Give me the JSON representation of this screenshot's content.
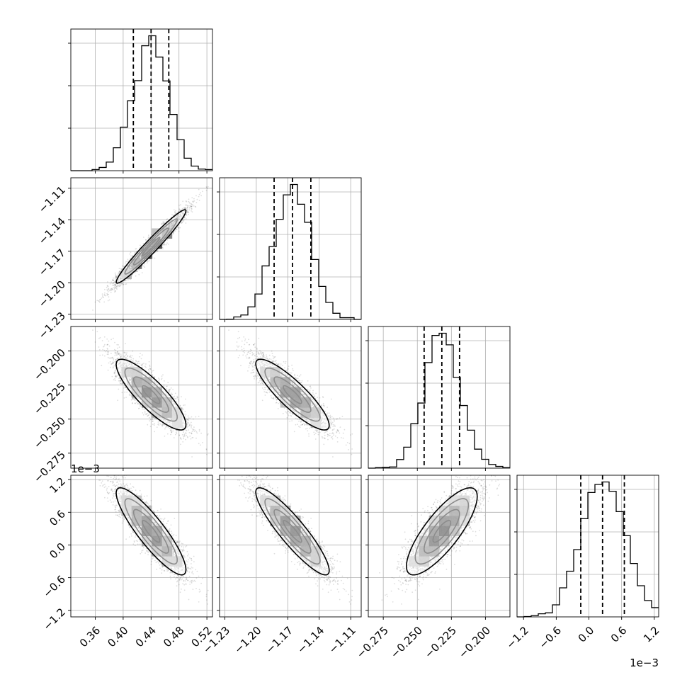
{
  "chart_data": {
    "type": "corner",
    "parameters": [
      {
        "range": [
          0.325,
          0.528
        ],
        "ticks": [
          0.36,
          0.4,
          0.44,
          0.48,
          0.52
        ],
        "tick_labels": [
          "0.36",
          "0.40",
          "0.44",
          "0.48",
          "0.52"
        ],
        "offset_label": "",
        "median": 0.44,
        "sigma": 0.025,
        "quantiles": [
          0.4146,
          0.44,
          0.4654
        ]
      },
      {
        "range": [
          -1.235,
          -1.1
        ],
        "ticks": [
          -1.23,
          -1.2,
          -1.17,
          -1.14,
          -1.11
        ],
        "tick_labels": [
          "−1.23",
          "−1.20",
          "−1.17",
          "−1.14",
          "−1.11"
        ],
        "offset_label": "",
        "median": -1.1655,
        "sigma": 0.0175,
        "quantiles": [
          -1.183,
          -1.1655,
          -1.148
        ]
      },
      {
        "range": [
          -0.286,
          -0.182
        ],
        "ticks": [
          -0.275,
          -0.25,
          -0.225,
          -0.2
        ],
        "tick_labels": [
          "−0.275",
          "−0.250",
          "−0.225",
          "−0.200"
        ],
        "offset_label": "",
        "median": -0.232,
        "sigma": 0.013,
        "quantiles": [
          -0.245,
          -0.232,
          -0.219
        ]
      },
      {
        "range": [
          -1.32,
          1.28
        ],
        "ticks": [
          -1.2,
          -0.6,
          0.0,
          0.6,
          1.2
        ],
        "tick_labels": [
          "−1.2",
          "−0.6",
          "0.0",
          "0.6",
          "1.2"
        ],
        "offset_label": "1e−3",
        "median": 0.25,
        "sigma": 0.4,
        "quantiles": [
          -0.15,
          0.25,
          0.65
        ]
      }
    ],
    "correlations": [
      [
        1.0,
        0.97,
        -0.85,
        -0.88
      ],
      [
        0.97,
        1.0,
        -0.87,
        -0.9
      ],
      [
        -0.85,
        -0.87,
        1.0,
        0.8
      ],
      [
        -0.88,
        -0.9,
        0.8,
        1.0
      ]
    ],
    "contour_levels": [
      0.5,
      1.0,
      1.5,
      2.0
    ],
    "grid": true
  }
}
